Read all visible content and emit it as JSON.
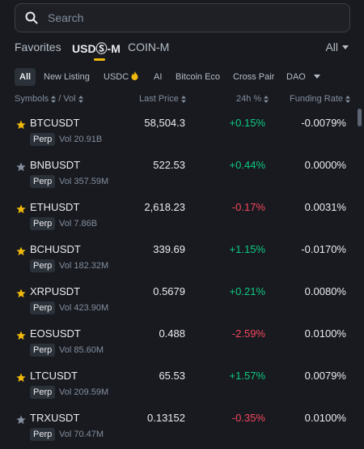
{
  "search": {
    "placeholder": "Search",
    "icon": "search-icon"
  },
  "tabs": [
    {
      "label": "Favorites",
      "active": false
    },
    {
      "label": "USDⓈ-M",
      "active": true
    },
    {
      "label": "COIN-M",
      "active": false
    }
  ],
  "market_filter": {
    "label": "All",
    "icon": "caret-down-icon"
  },
  "categories": [
    {
      "label": "All",
      "active": true
    },
    {
      "label": "New Listing"
    },
    {
      "label": "USDC",
      "icon": "flame-icon"
    },
    {
      "label": "AI"
    },
    {
      "label": "Bitcoin Eco"
    },
    {
      "label": "Cross Pair"
    },
    {
      "label": "DAO"
    }
  ],
  "headers": {
    "symbols": "Symbols",
    "vol": "Vol",
    "separator": "/",
    "last_price": "Last Price",
    "change": "24h %",
    "funding": "Funding Rate"
  },
  "accent_color": "#f0b90b",
  "positive_color": "#0ecb81",
  "negative_color": "#f6465d",
  "rows": [
    {
      "symbol": "BTCUSDT",
      "badge": "Perp",
      "vol": "Vol 20.91B",
      "price": "58,504.3",
      "change": "+0.15%",
      "funding": "-0.0079%",
      "favorite": true
    },
    {
      "symbol": "BNBUSDT",
      "badge": "Perp",
      "vol": "Vol 357.59M",
      "price": "522.53",
      "change": "+0.44%",
      "funding": "0.0000%",
      "favorite": false
    },
    {
      "symbol": "ETHUSDT",
      "badge": "Perp",
      "vol": "Vol 7.86B",
      "price": "2,618.23",
      "change": "-0.17%",
      "funding": "0.0031%",
      "favorite": true
    },
    {
      "symbol": "BCHUSDT",
      "badge": "Perp",
      "vol": "Vol 182.32M",
      "price": "339.69",
      "change": "+1.15%",
      "funding": "-0.0170%",
      "favorite": true
    },
    {
      "symbol": "XRPUSDT",
      "badge": "Perp",
      "vol": "Vol 423.90M",
      "price": "0.5679",
      "change": "+0.21%",
      "funding": "0.0080%",
      "favorite": true
    },
    {
      "symbol": "EOSUSDT",
      "badge": "Perp",
      "vol": "Vol 85.60M",
      "price": "0.488",
      "change": "-2.59%",
      "funding": "0.0100%",
      "favorite": true
    },
    {
      "symbol": "LTCUSDT",
      "badge": "Perp",
      "vol": "Vol 209.59M",
      "price": "65.53",
      "change": "+1.57%",
      "funding": "0.0079%",
      "favorite": true
    },
    {
      "symbol": "TRXUSDT",
      "badge": "Perp",
      "vol": "Vol 70.47M",
      "price": "0.13152",
      "change": "-0.35%",
      "funding": "0.0100%",
      "favorite": false
    }
  ]
}
